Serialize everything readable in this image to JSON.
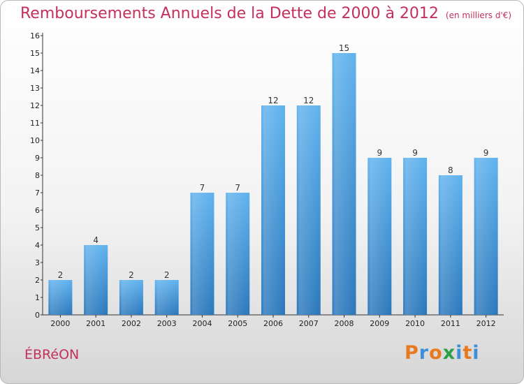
{
  "title": "Remboursements Annuels de la Dette de 2000 à 2012",
  "unit_note": "(en milliers d'€)",
  "commune": "ÉBRéON",
  "logo": {
    "text": "Proxiti",
    "letters": [
      {
        "char": "P",
        "color": "#e8791e"
      },
      {
        "char": "r",
        "color": "#3d8fd8"
      },
      {
        "char": "o",
        "color": "#e8791e"
      },
      {
        "char": "x",
        "color": "#2aa148"
      },
      {
        "char": "i",
        "color": "#3d8fd8"
      },
      {
        "char": "t",
        "color": "#e8791e"
      },
      {
        "char": "i",
        "color": "#3d8fd8"
      }
    ]
  },
  "colors": {
    "title": "#c4305c",
    "bar_top": "#5fb2ee",
    "bar_bottom": "#2a77bb",
    "bar_light": "#8ecdf7"
  },
  "chart_data": {
    "type": "bar",
    "categories": [
      "2000",
      "2001",
      "2002",
      "2003",
      "2004",
      "2005",
      "2006",
      "2007",
      "2008",
      "2009",
      "2010",
      "2011",
      "2012"
    ],
    "values": [
      2,
      4,
      2,
      2,
      7,
      7,
      12,
      12,
      15,
      9,
      9,
      8,
      9
    ],
    "value_labels": [
      "2",
      "4",
      "2",
      "2",
      "7",
      "7",
      "12",
      "12",
      "15",
      "9",
      "9",
      "8",
      "9"
    ],
    "title": "Remboursements Annuels de la Dette de 2000 à 2012",
    "xlabel": "",
    "ylabel": "",
    "ylim": [
      0,
      16
    ],
    "yticks": [
      0,
      1,
      2,
      3,
      4,
      5,
      6,
      7,
      8,
      9,
      10,
      11,
      12,
      13,
      14,
      15,
      16
    ],
    "grid": false
  }
}
